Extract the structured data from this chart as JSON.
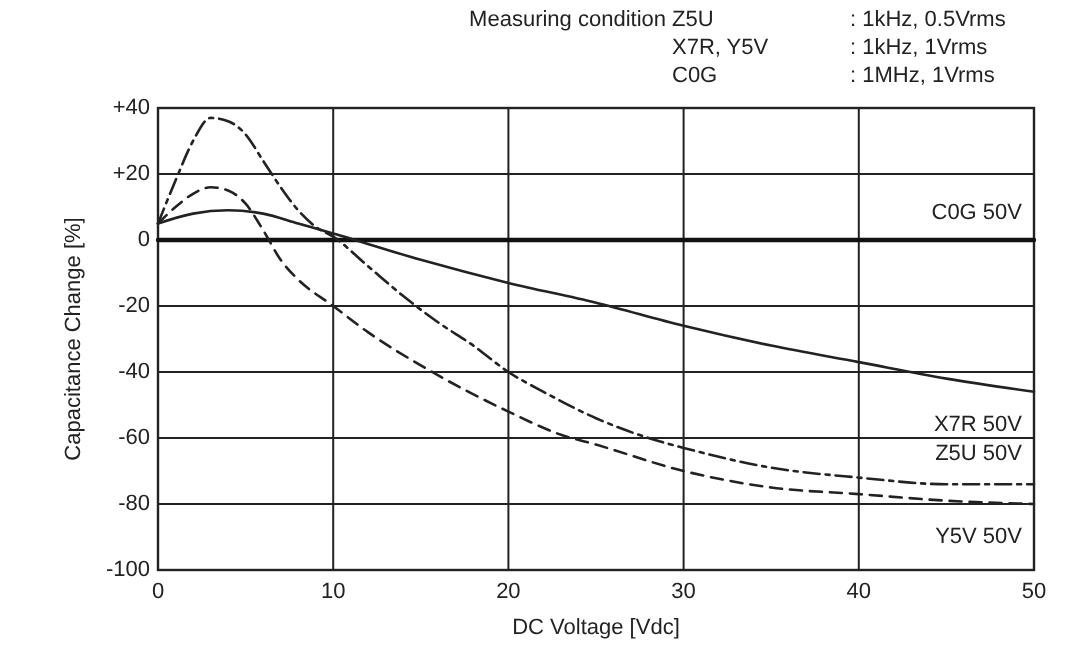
{
  "chart_data": {
    "type": "line",
    "xlabel": "DC Voltage [Vdc]",
    "ylabel": "Capacitance Change [%]",
    "annotations": [
      "Measuring condition",
      "Z5U",
      ": 1kHz, 0.5Vrms",
      "X7R, Y5V",
      ": 1kHz, 1Vrms",
      "C0G",
      ": 1MHz, 1Vrms"
    ],
    "xlim": [
      0,
      50
    ],
    "xticks": [
      0,
      10,
      20,
      30,
      40,
      50
    ],
    "ylim": [
      -100,
      40
    ],
    "yticks": [
      {
        "value": 40,
        "label": "+40"
      },
      {
        "value": 20,
        "label": "+20"
      },
      0,
      -20,
      -40,
      -60,
      -80,
      -100
    ],
    "grid": true,
    "series": [
      {
        "name": "C0G 50V",
        "color": "#111111",
        "line_style": "solid",
        "x": [
          0,
          50
        ],
        "values": [
          0,
          0
        ]
      },
      {
        "name": "X7R 50V",
        "color": "#222222",
        "line_style": "solid",
        "x": [
          0,
          2,
          4,
          6,
          8,
          10,
          15,
          20,
          25,
          30,
          35,
          40,
          45,
          50
        ],
        "values": [
          5,
          8,
          9,
          8,
          5,
          2,
          -6,
          -13,
          -19,
          -26,
          -32,
          -37,
          -42,
          -46
        ]
      },
      {
        "name": "Z5U 50V",
        "color": "#222222",
        "line_style": "dashdot",
        "x": [
          0,
          1,
          2,
          3,
          4,
          5,
          6,
          7,
          8,
          9,
          10,
          12,
          14,
          16,
          18,
          20,
          22,
          25,
          28,
          30,
          35,
          40,
          45,
          50
        ],
        "values": [
          5,
          18,
          30,
          37,
          36,
          32,
          24,
          16,
          9,
          4,
          1,
          -8,
          -17,
          -25,
          -32,
          -40,
          -46,
          -54,
          -60,
          -63,
          -69,
          -72,
          -74,
          -74
        ]
      },
      {
        "name": "Y5V 50V",
        "color": "#222222",
        "line_style": "dashed",
        "x": [
          0,
          1,
          2,
          3,
          4,
          5,
          6,
          7,
          8,
          10,
          12,
          15,
          20,
          23,
          25,
          30,
          35,
          40,
          45,
          50
        ],
        "values": [
          5,
          10,
          14,
          16,
          15,
          11,
          3,
          -6,
          -12,
          -20,
          -28,
          -38,
          -52,
          -59,
          -62,
          -70,
          -75,
          -77,
          -79,
          -80
        ]
      }
    ]
  }
}
